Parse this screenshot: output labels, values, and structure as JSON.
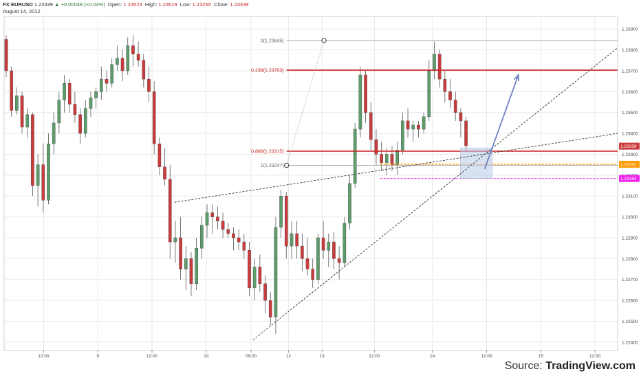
{
  "header": {
    "symbol": "FX:EURUSD",
    "last": "1.23339",
    "change": "+0.00048 (+0.04%)",
    "open_label": "Open:",
    "open": "1.23523",
    "high_label": "High:",
    "high": "1.23619",
    "low_label": "Low:",
    "low": "1.23255",
    "close_label": "Close:",
    "close": "1.23339",
    "date": "August 14, 2012"
  },
  "source": {
    "prefix": "Source:",
    "brand": "TradingView.com"
  },
  "colors": {
    "up": "#5c9c6b",
    "down": "#cc3b3b",
    "fib": "#cc2222",
    "orange": "#ff9900",
    "magenta": "#ee22ee",
    "arrow": "#6d82c4",
    "grid": "#e8e8e8"
  },
  "chart_data": {
    "type": "candlestick",
    "symbol": "FX:EURUSD",
    "ylim": [
      1.2236,
      1.2396
    ],
    "y_ticks": [
      "1.23900",
      "1.23800",
      "1.23700",
      "1.23600",
      "1.23500",
      "1.23400",
      "1.23300",
      "1.23200",
      "1.23100",
      "1.23000",
      "1.22900",
      "1.22800",
      "1.22700",
      "1.22600",
      "1.22500",
      "1.22400"
    ],
    "x_ticks": [
      {
        "label": "12:00",
        "bar": 20
      },
      {
        "label": "9",
        "bar": 49
      },
      {
        "label": "12:00",
        "bar": 78
      },
      {
        "label": "10",
        "bar": 107
      },
      {
        "label": "09:00",
        "bar": 131
      },
      {
        "label": "12",
        "bar": 151
      },
      {
        "label": "13",
        "bar": 169
      },
      {
        "label": "12:00",
        "bar": 197
      },
      {
        "label": "14",
        "bar": 228
      },
      {
        "label": "12:00",
        "bar": 257
      },
      {
        "label": "15",
        "bar": 286
      },
      {
        "label": "12:00",
        "bar": 315
      }
    ],
    "bar_count": 326,
    "ohlc": [
      [
        1.2385,
        1.2387,
        1.2367,
        1.237
      ],
      [
        1.237,
        1.2372,
        1.2348,
        1.2351
      ],
      [
        1.2351,
        1.2362,
        1.2349,
        1.2358
      ],
      [
        1.2358,
        1.236,
        1.234,
        1.2343
      ],
      [
        1.2343,
        1.2352,
        1.2338,
        1.2349
      ],
      [
        1.2349,
        1.235,
        1.231,
        1.2315
      ],
      [
        1.2315,
        1.233,
        1.2305,
        1.2325
      ],
      [
        1.2325,
        1.2335,
        1.2302,
        1.2308
      ],
      [
        1.2308,
        1.234,
        1.2306,
        1.2335
      ],
      [
        1.2335,
        1.235,
        1.233,
        1.2345
      ],
      [
        1.2345,
        1.236,
        1.234,
        1.2356
      ],
      [
        1.2356,
        1.2368,
        1.235,
        1.2364
      ],
      [
        1.2364,
        1.2366,
        1.235,
        1.2354
      ],
      [
        1.2354,
        1.236,
        1.2345,
        1.2349
      ],
      [
        1.2349,
        1.2352,
        1.2335,
        1.234
      ],
      [
        1.234,
        1.2356,
        1.2338,
        1.2352
      ],
      [
        1.2352,
        1.236,
        1.2348,
        1.2357
      ],
      [
        1.2357,
        1.2362,
        1.2352,
        1.236
      ],
      [
        1.236,
        1.2372,
        1.2356,
        1.2366
      ],
      [
        1.2366,
        1.237,
        1.236,
        1.2364
      ],
      [
        1.2364,
        1.2376,
        1.2362,
        1.2373
      ],
      [
        1.2373,
        1.2382,
        1.237,
        1.2376
      ],
      [
        1.2376,
        1.238,
        1.2365,
        1.237
      ],
      [
        1.237,
        1.2386,
        1.2368,
        1.2382
      ],
      [
        1.2382,
        1.2387,
        1.2372,
        1.2378
      ],
      [
        1.2378,
        1.2384,
        1.2372,
        1.2375
      ],
      [
        1.2375,
        1.2378,
        1.2362,
        1.2366
      ],
      [
        1.2366,
        1.2372,
        1.2355,
        1.236
      ],
      [
        1.236,
        1.2365,
        1.233,
        1.2335
      ],
      [
        1.2335,
        1.2338,
        1.232,
        1.2324
      ],
      [
        1.2324,
        1.2333,
        1.2315,
        1.2318
      ],
      [
        1.2318,
        1.2325,
        1.228,
        1.2288
      ],
      [
        1.2288,
        1.2298,
        1.2278,
        1.229
      ],
      [
        1.229,
        1.23,
        1.227,
        1.2275
      ],
      [
        1.2275,
        1.2286,
        1.2265,
        1.228
      ],
      [
        1.228,
        1.2283,
        1.2262,
        1.2268
      ],
      [
        1.2268,
        1.229,
        1.2265,
        1.2285
      ],
      [
        1.2285,
        1.23,
        1.228,
        1.2296
      ],
      [
        1.2296,
        1.2306,
        1.229,
        1.2302
      ],
      [
        1.2302,
        1.2306,
        1.2292,
        1.23
      ],
      [
        1.23,
        1.2305,
        1.2294,
        1.2298
      ],
      [
        1.2298,
        1.2302,
        1.229,
        1.2294
      ],
      [
        1.2294,
        1.2297,
        1.229,
        1.2292
      ],
      [
        1.2292,
        1.2295,
        1.2284,
        1.229
      ],
      [
        1.229,
        1.2294,
        1.2284,
        1.2288
      ],
      [
        1.2288,
        1.2292,
        1.228,
        1.2284
      ],
      [
        1.2284,
        1.2288,
        1.2262,
        1.2266
      ],
      [
        1.2266,
        1.228,
        1.226,
        1.2276
      ],
      [
        1.2276,
        1.2282,
        1.2264,
        1.2268
      ],
      [
        1.2268,
        1.2272,
        1.2254,
        1.226
      ],
      [
        1.226,
        1.2264,
        1.2248,
        1.2252
      ],
      [
        1.2252,
        1.23,
        1.2244,
        1.2295
      ],
      [
        1.2295,
        1.2313,
        1.229,
        1.231
      ],
      [
        1.231,
        1.2312,
        1.228,
        1.2286
      ],
      [
        1.2286,
        1.2298,
        1.228,
        1.2292
      ],
      [
        1.2292,
        1.2298,
        1.228,
        1.2286
      ],
      [
        1.2286,
        1.2292,
        1.2274,
        1.228
      ],
      [
        1.228,
        1.229,
        1.2272,
        1.2275
      ],
      [
        1.2275,
        1.228,
        1.2266,
        1.227
      ],
      [
        1.227,
        1.2292,
        1.2268,
        1.229
      ],
      [
        1.229,
        1.2298,
        1.228,
        1.2284
      ],
      [
        1.2284,
        1.2292,
        1.2276,
        1.2288
      ],
      [
        1.2288,
        1.2293,
        1.2275,
        1.228
      ],
      [
        1.228,
        1.2286,
        1.227,
        1.2278
      ],
      [
        1.2278,
        1.23,
        1.2276,
        1.2297
      ],
      [
        1.2297,
        1.232,
        1.2294,
        1.2316
      ],
      [
        1.2316,
        1.2345,
        1.2314,
        1.2342
      ],
      [
        1.2342,
        1.2372,
        1.2338,
        1.2368
      ],
      [
        1.2368,
        1.237,
        1.2345,
        1.235
      ],
      [
        1.235,
        1.2355,
        1.2332,
        1.2337
      ],
      [
        1.2337,
        1.2342,
        1.2325,
        1.233
      ],
      [
        1.233,
        1.2336,
        1.2322,
        1.2326
      ],
      [
        1.2326,
        1.2333,
        1.232,
        1.233
      ],
      [
        1.233,
        1.2334,
        1.2322,
        1.2325
      ],
      [
        1.2325,
        1.2336,
        1.232,
        1.2332
      ],
      [
        1.2332,
        1.235,
        1.233,
        1.2346
      ],
      [
        1.2346,
        1.2352,
        1.2338,
        1.2342
      ],
      [
        1.2342,
        1.2346,
        1.2336,
        1.2344
      ],
      [
        1.2344,
        1.2346,
        1.2338,
        1.2342
      ],
      [
        1.2342,
        1.235,
        1.234,
        1.2348
      ],
      [
        1.2348,
        1.2375,
        1.2346,
        1.237
      ],
      [
        1.237,
        1.2384,
        1.2366,
        1.2378
      ],
      [
        1.2378,
        1.238,
        1.2362,
        1.2366
      ],
      [
        1.2366,
        1.237,
        1.2355,
        1.236
      ],
      [
        1.236,
        1.2366,
        1.2352,
        1.2356
      ],
      [
        1.2356,
        1.236,
        1.2346,
        1.235
      ],
      [
        1.235,
        1.2352,
        1.2338,
        1.2346
      ],
      [
        1.2346,
        1.2348,
        1.2331,
        1.2334
      ]
    ]
  },
  "overlay": {
    "fib_levels": [
      {
        "label": "0(1.23845)",
        "value": 1.23845
      },
      {
        "label": "0.236(1.23703)",
        "value": 1.23703
      },
      {
        "label": "0.886(1.23315)",
        "value": 1.23315
      },
      {
        "label": "1(1.23247)",
        "value": 1.23247
      }
    ],
    "price_labels": [
      {
        "text": "1.23339",
        "value": 1.23339,
        "color": "#cc3b3b"
      },
      {
        "text": "1.23252",
        "value": 1.23252,
        "color": "#ff9900"
      },
      {
        "text": "1.23184",
        "value": 1.23184,
        "color": "#ee22ee"
      }
    ],
    "orange_level": 1.23252,
    "magenta_level": 1.23184
  }
}
